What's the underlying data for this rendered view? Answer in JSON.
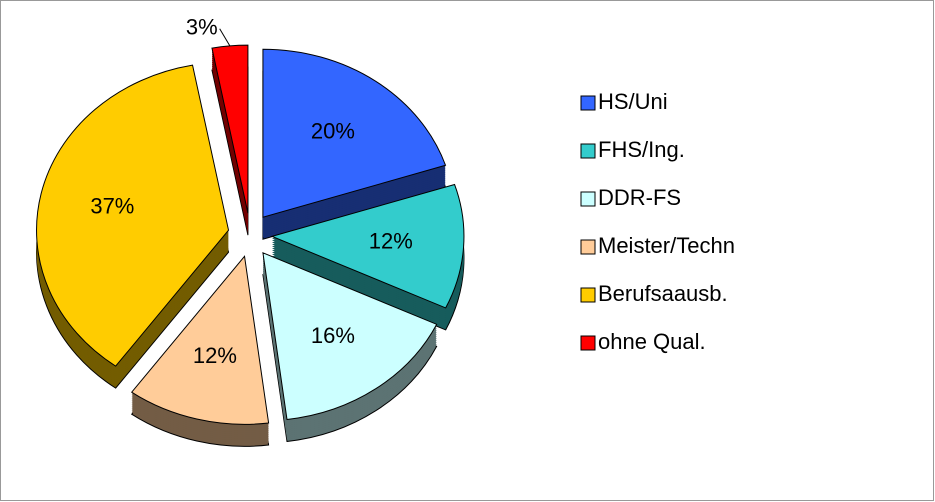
{
  "chart_data": {
    "type": "pie",
    "categories": [
      "HS/Uni",
      "FHS/Ing.",
      "DDR-FS",
      "Meister/Techn",
      "Berufsaausb.",
      "ohne Qual."
    ],
    "values": [
      20,
      12,
      16,
      12,
      37,
      3
    ],
    "value_labels": [
      "20%",
      "12%",
      "16%",
      "12%",
      "37%",
      "3%"
    ],
    "colors": [
      "#3366ff",
      "#33cccc",
      "#ccffff",
      "#ffcc99",
      "#ffcc00",
      "#ff0000"
    ],
    "legend": "right"
  }
}
